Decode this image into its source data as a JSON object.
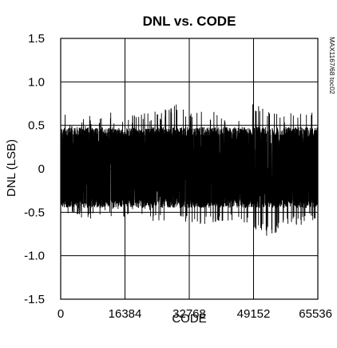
{
  "chart_data": {
    "type": "line",
    "title": "DNL vs. CODE",
    "xlabel": "CODE",
    "ylabel": "DNL (LSB)",
    "xlim": [
      0,
      65536
    ],
    "ylim": [
      -1.5,
      1.5
    ],
    "x_ticks": [
      0,
      16384,
      32768,
      49152,
      65536
    ],
    "x_tick_labels": [
      "0",
      "16384",
      "32768",
      "49152",
      "65536"
    ],
    "y_ticks": [
      1.5,
      1.0,
      0.5,
      0,
      -0.5,
      -1.0,
      -1.5
    ],
    "y_tick_labels": [
      "1.5",
      "1.0",
      "0.5",
      "0",
      "-0.5",
      "-1.0",
      "-1.5"
    ],
    "grid": true,
    "series": [
      {
        "color": "#000000",
        "envelope": {
          "x": [
            0,
            4096,
            8192,
            12288,
            16384,
            20480,
            24576,
            28672,
            32768,
            36864,
            40960,
            45056,
            49152,
            53248,
            57344,
            61440,
            65536
          ],
          "max": [
            0.66,
            0.58,
            0.62,
            0.65,
            0.62,
            0.64,
            0.66,
            0.76,
            0.67,
            0.68,
            0.66,
            0.64,
            0.8,
            0.67,
            0.64,
            0.66,
            0.7
          ],
          "min": [
            -0.5,
            -0.55,
            -0.6,
            -0.55,
            -0.58,
            -0.55,
            -0.62,
            -0.6,
            -0.62,
            -0.65,
            -0.6,
            -0.65,
            -0.68,
            -0.8,
            -0.68,
            -0.65,
            -0.6
          ],
          "typical_upper": 0.48,
          "typical_lower": -0.45
        }
      }
    ]
  },
  "side_note": "MAX1167/68 toc02"
}
